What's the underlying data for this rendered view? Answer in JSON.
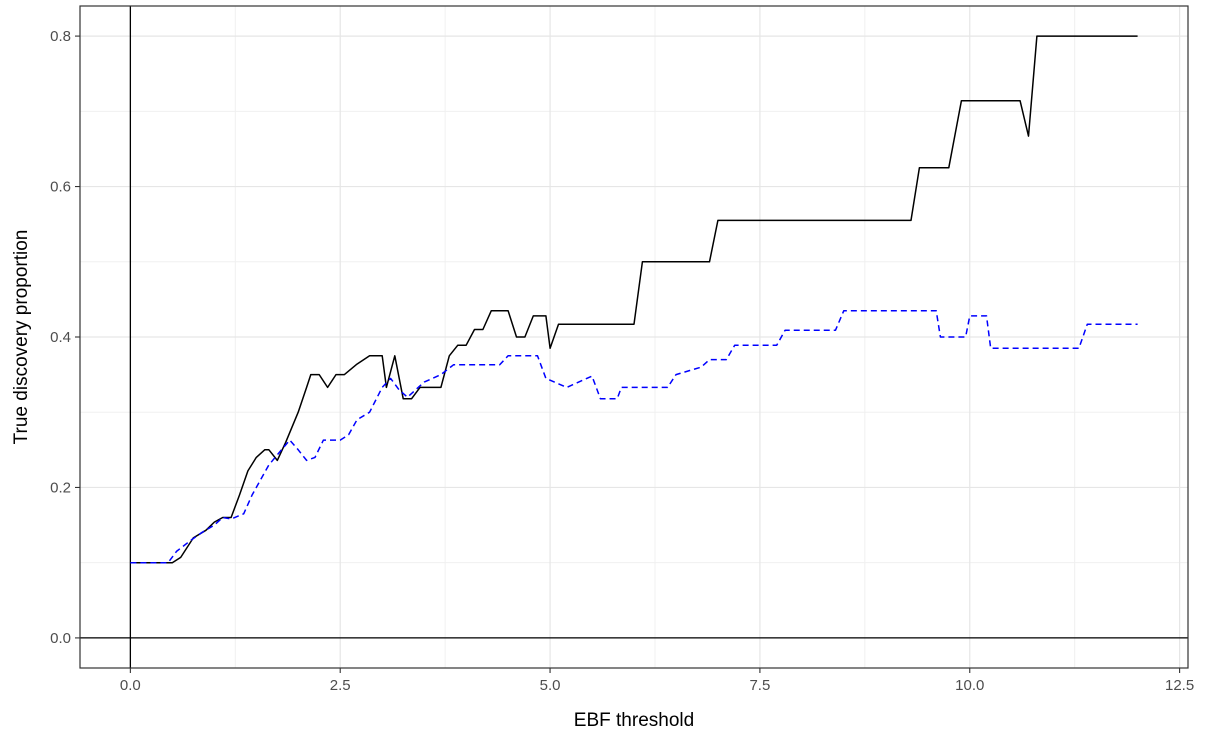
{
  "chart_data": {
    "type": "line",
    "xlabel": "EBF threshold",
    "ylabel": "True discovery proportion",
    "xlim": [
      -0.6,
      12.6
    ],
    "ylim": [
      -0.04,
      0.84
    ],
    "x_ticks": [
      0.0,
      2.5,
      5.0,
      7.5,
      10.0,
      12.5
    ],
    "x_tick_labels": [
      "0.0",
      "2.5",
      "5.0",
      "7.5",
      "10.0",
      "12.5"
    ],
    "y_ticks": [
      0.0,
      0.2,
      0.4,
      0.6,
      0.8
    ],
    "y_tick_labels": [
      "0.0",
      "0.2",
      "0.4",
      "0.6",
      "0.8"
    ],
    "grid": true,
    "reference_lines": {
      "x": 0,
      "y": 0
    },
    "series": [
      {
        "style": "solid",
        "color": "#000000",
        "points": [
          [
            0.0,
            0.1
          ],
          [
            0.5,
            0.1
          ],
          [
            0.6,
            0.107
          ],
          [
            0.75,
            0.133
          ],
          [
            0.9,
            0.143
          ],
          [
            1.0,
            0.154
          ],
          [
            1.1,
            0.16
          ],
          [
            1.2,
            0.16
          ],
          [
            1.3,
            0.19
          ],
          [
            1.4,
            0.222
          ],
          [
            1.5,
            0.24
          ],
          [
            1.6,
            0.25
          ],
          [
            1.65,
            0.25
          ],
          [
            1.75,
            0.236
          ],
          [
            1.85,
            0.26
          ],
          [
            2.0,
            0.3
          ],
          [
            2.1,
            0.333
          ],
          [
            2.15,
            0.35
          ],
          [
            2.25,
            0.35
          ],
          [
            2.35,
            0.333
          ],
          [
            2.45,
            0.35
          ],
          [
            2.55,
            0.35
          ],
          [
            2.7,
            0.364
          ],
          [
            2.85,
            0.375
          ],
          [
            3.0,
            0.375
          ],
          [
            3.05,
            0.333
          ],
          [
            3.15,
            0.375
          ],
          [
            3.25,
            0.318
          ],
          [
            3.35,
            0.318
          ],
          [
            3.45,
            0.333
          ],
          [
            3.6,
            0.333
          ],
          [
            3.7,
            0.333
          ],
          [
            3.8,
            0.375
          ],
          [
            3.9,
            0.389
          ],
          [
            4.0,
            0.389
          ],
          [
            4.1,
            0.41
          ],
          [
            4.2,
            0.41
          ],
          [
            4.3,
            0.435
          ],
          [
            4.5,
            0.435
          ],
          [
            4.6,
            0.4
          ],
          [
            4.7,
            0.4
          ],
          [
            4.8,
            0.428
          ],
          [
            4.95,
            0.428
          ],
          [
            5.0,
            0.385
          ],
          [
            5.1,
            0.417
          ],
          [
            6.0,
            0.417
          ],
          [
            6.1,
            0.5
          ],
          [
            6.9,
            0.5
          ],
          [
            7.0,
            0.555
          ],
          [
            9.3,
            0.555
          ],
          [
            9.4,
            0.625
          ],
          [
            9.75,
            0.625
          ],
          [
            9.9,
            0.714
          ],
          [
            10.6,
            0.714
          ],
          [
            10.7,
            0.667
          ],
          [
            10.8,
            0.8
          ],
          [
            12.0,
            0.8
          ]
        ]
      },
      {
        "style": "dashed",
        "color": "#0000ff",
        "points": [
          [
            0.0,
            0.1
          ],
          [
            0.45,
            0.1
          ],
          [
            0.55,
            0.115
          ],
          [
            0.7,
            0.128
          ],
          [
            0.85,
            0.14
          ],
          [
            1.0,
            0.15
          ],
          [
            1.1,
            0.16
          ],
          [
            1.2,
            0.158
          ],
          [
            1.35,
            0.165
          ],
          [
            1.45,
            0.19
          ],
          [
            1.55,
            0.21
          ],
          [
            1.65,
            0.23
          ],
          [
            1.8,
            0.25
          ],
          [
            1.9,
            0.263
          ],
          [
            2.0,
            0.25
          ],
          [
            2.1,
            0.236
          ],
          [
            2.2,
            0.24
          ],
          [
            2.3,
            0.263
          ],
          [
            2.5,
            0.263
          ],
          [
            2.6,
            0.27
          ],
          [
            2.7,
            0.29
          ],
          [
            2.85,
            0.3
          ],
          [
            3.0,
            0.333
          ],
          [
            3.1,
            0.345
          ],
          [
            3.2,
            0.33
          ],
          [
            3.3,
            0.32
          ],
          [
            3.5,
            0.34
          ],
          [
            3.7,
            0.35
          ],
          [
            3.85,
            0.363
          ],
          [
            4.4,
            0.363
          ],
          [
            4.5,
            0.375
          ],
          [
            4.85,
            0.375
          ],
          [
            4.95,
            0.345
          ],
          [
            5.2,
            0.333
          ],
          [
            5.5,
            0.348
          ],
          [
            5.6,
            0.318
          ],
          [
            5.8,
            0.318
          ],
          [
            5.85,
            0.333
          ],
          [
            6.4,
            0.333
          ],
          [
            6.5,
            0.35
          ],
          [
            6.8,
            0.36
          ],
          [
            6.9,
            0.37
          ],
          [
            7.1,
            0.37
          ],
          [
            7.2,
            0.389
          ],
          [
            7.7,
            0.389
          ],
          [
            7.8,
            0.409
          ],
          [
            8.4,
            0.409
          ],
          [
            8.5,
            0.435
          ],
          [
            9.6,
            0.435
          ],
          [
            9.65,
            0.4
          ],
          [
            9.95,
            0.4
          ],
          [
            10.0,
            0.428
          ],
          [
            10.2,
            0.428
          ],
          [
            10.25,
            0.385
          ],
          [
            11.3,
            0.385
          ],
          [
            11.4,
            0.417
          ],
          [
            12.0,
            0.417
          ]
        ]
      }
    ]
  }
}
